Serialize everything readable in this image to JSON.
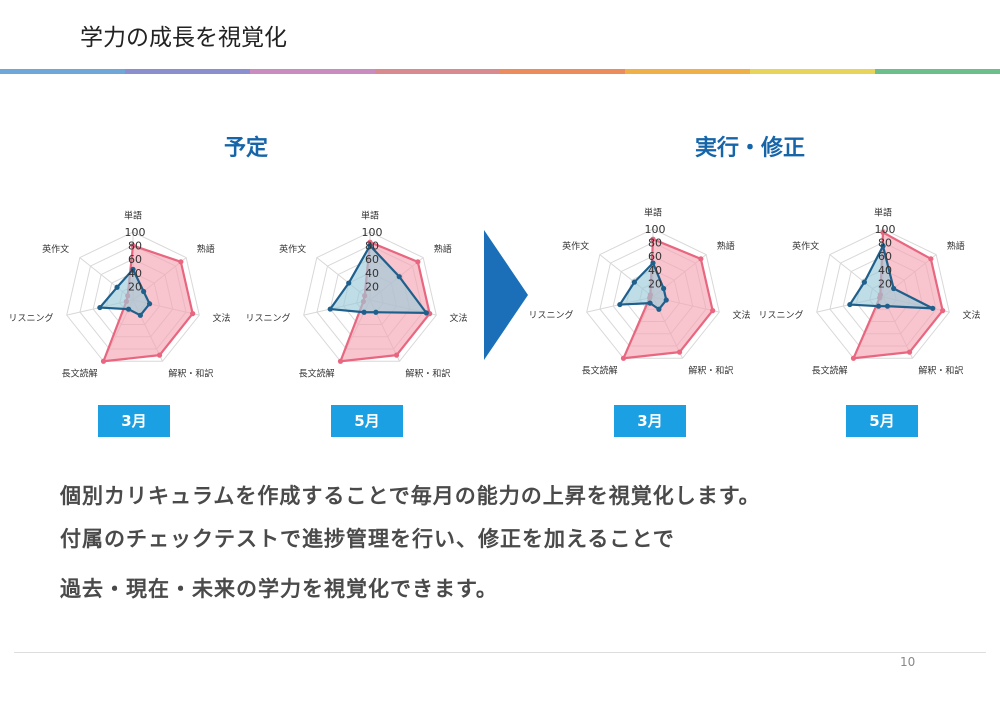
{
  "slide": {
    "title": "学力の成長を視覚化",
    "page_number": "10",
    "rainbow_colors": [
      "#6fa8d8",
      "#8c8fcf",
      "#c98bc0",
      "#d98a8f",
      "#ec8c5c",
      "#f0b048",
      "#e8d45a",
      "#6cbf8a"
    ]
  },
  "sections": {
    "plan_title": "予定",
    "actual_title": "実行・修正"
  },
  "text_lines": [
    "個別カリキュラムを作成することで毎月の能力の上昇を視覚化します。",
    "付属のチェックテストで進捗管理を行い、修正を加えることで",
    "過去・現在・未来の学力を視覚化できます。"
  ],
  "colors": {
    "plan_fill": "#f4a6b3",
    "plan_stroke": "#e8667f",
    "actual_fill": "#9ccbd8",
    "actual_stroke": "#1f5f8b",
    "month_badge": "#1aa0e3",
    "section_title": "#1565a8"
  },
  "chart_data": [
    {
      "type": "radar",
      "badge": "3月",
      "axes": [
        "単語",
        "熟語",
        "文法",
        "解釈・和訳",
        "長文読解",
        "リスニング",
        "英作文"
      ],
      "ticks": [
        "100",
        "80",
        "60",
        "40",
        "20"
      ],
      "range": [
        0,
        100
      ],
      "series": [
        {
          "role": "plan",
          "values": [
            80,
            90,
            90,
            90,
            100,
            10,
            10
          ]
        },
        {
          "role": "actual",
          "values": [
            45,
            20,
            25,
            25,
            15,
            50,
            30
          ]
        }
      ]
    },
    {
      "type": "radar",
      "badge": "5月",
      "axes": [
        "単語",
        "熟語",
        "文法",
        "解釈・和訳",
        "長文読解",
        "リスニング",
        "英作文"
      ],
      "ticks": [
        "100",
        "80",
        "60",
        "40",
        "20"
      ],
      "range": [
        0,
        100
      ],
      "series": [
        {
          "role": "plan",
          "values": [
            85,
            90,
            90,
            90,
            100,
            10,
            10
          ]
        },
        {
          "role": "actual",
          "values": [
            80,
            55,
            85,
            20,
            20,
            60,
            40
          ]
        }
      ]
    },
    {
      "type": "radar",
      "badge": "3月",
      "axes": [
        "単語",
        "熟語",
        "文法",
        "解釈・和訳",
        "長文読解",
        "リスニング",
        "英作文"
      ],
      "ticks": [
        "100",
        "80",
        "60",
        "40",
        "20"
      ],
      "range": [
        0,
        100
      ],
      "series": [
        {
          "role": "plan",
          "values": [
            85,
            90,
            90,
            90,
            100,
            5,
            5
          ]
        },
        {
          "role": "actual",
          "values": [
            50,
            20,
            20,
            20,
            10,
            50,
            35
          ]
        }
      ]
    },
    {
      "type": "radar",
      "badge": "5月",
      "axes": [
        "単語",
        "熟語",
        "文法",
        "解釈・和訳",
        "長文読解",
        "リスニング",
        "英作文"
      ],
      "ticks": [
        "100",
        "80",
        "60",
        "40",
        "20"
      ],
      "range": [
        0,
        100
      ],
      "series": [
        {
          "role": "plan",
          "values": [
            95,
            90,
            90,
            90,
            100,
            5,
            5
          ]
        },
        {
          "role": "actual",
          "values": [
            75,
            20,
            75,
            15,
            15,
            50,
            35
          ]
        }
      ]
    }
  ]
}
